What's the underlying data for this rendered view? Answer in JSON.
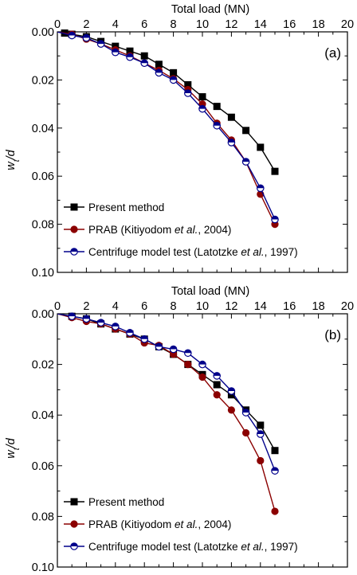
{
  "chart_data": [
    {
      "type": "line",
      "panel_label": "(a)",
      "xlabel": "Total load (MN)",
      "ylabel_main": "w",
      "ylabel_sub": "t",
      "ylabel_rest": "/d",
      "xlim": [
        0,
        20
      ],
      "ylim": [
        0.1,
        0.0
      ],
      "y_reversed": true,
      "x_ticks": [
        "0",
        "2",
        "4",
        "6",
        "8",
        "10",
        "12",
        "14",
        "16",
        "18",
        "20"
      ],
      "y_ticks": [
        "0.00",
        "0.02",
        "0.04",
        "0.06",
        "0.08",
        "0.10"
      ],
      "x_axis_position": "top",
      "grid": false,
      "legend_position": "bottom-left",
      "series": [
        {
          "name": "Present method",
          "color": "#000000",
          "marker": "square",
          "points": [
            [
              0,
              0.0
            ],
            [
              0.5,
              0.0005
            ],
            [
              1,
              0.001
            ],
            [
              2,
              0.002
            ],
            [
              3,
              0.004
            ],
            [
              4,
              0.006
            ],
            [
              5,
              0.008
            ],
            [
              6,
              0.01
            ],
            [
              7,
              0.0135
            ],
            [
              8,
              0.017
            ],
            [
              9,
              0.022
            ],
            [
              10,
              0.027
            ],
            [
              11,
              0.031
            ],
            [
              12,
              0.0355
            ],
            [
              13,
              0.041
            ],
            [
              14,
              0.048
            ],
            [
              15,
              0.058
            ]
          ]
        },
        {
          "name": "PRAB",
          "name_parts": [
            "PRAB (Kitiyodom ",
            "et al.",
            ", 2004)"
          ],
          "color": "#8b0000",
          "marker": "circle",
          "points": [
            [
              0,
              0.0
            ],
            [
              1,
              0.001
            ],
            [
              2,
              0.003
            ],
            [
              3,
              0.005
            ],
            [
              4,
              0.0075
            ],
            [
              5,
              0.01
            ],
            [
              6,
              0.013
            ],
            [
              7,
              0.016
            ],
            [
              8,
              0.0195
            ],
            [
              9,
              0.024
            ],
            [
              10,
              0.03
            ],
            [
              11,
              0.038
            ],
            [
              12,
              0.045
            ],
            [
              13,
              0.054
            ],
            [
              14,
              0.0675
            ],
            [
              15,
              0.08
            ]
          ]
        },
        {
          "name": "Centrifuge model test",
          "name_parts": [
            "Centrifuge model test (Latotzke ",
            "et al.",
            ", 1997)"
          ],
          "color": "#00008b",
          "marker": "half-circle",
          "points": [
            [
              0,
              0.0
            ],
            [
              1,
              0.0015
            ],
            [
              2,
              0.0025
            ],
            [
              3,
              0.005
            ],
            [
              4,
              0.0085
            ],
            [
              5,
              0.0105
            ],
            [
              6,
              0.013
            ],
            [
              7,
              0.017
            ],
            [
              8,
              0.02
            ],
            [
              9,
              0.0255
            ],
            [
              10,
              0.032
            ],
            [
              11,
              0.039
            ],
            [
              12,
              0.046
            ],
            [
              13,
              0.054
            ],
            [
              14,
              0.065
            ],
            [
              15,
              0.078
            ]
          ]
        }
      ]
    },
    {
      "type": "line",
      "panel_label": "(b)",
      "xlabel": "Total load (MN)",
      "ylabel_main": "w",
      "ylabel_sub": "t",
      "ylabel_rest": "/d",
      "xlim": [
        0,
        20
      ],
      "ylim": [
        0.1,
        0.0
      ],
      "y_reversed": true,
      "x_ticks": [
        "0",
        "2",
        "4",
        "6",
        "8",
        "10",
        "12",
        "14",
        "16",
        "18",
        "20"
      ],
      "y_ticks": [
        "0.00",
        "0.02",
        "0.04",
        "0.06",
        "0.08",
        "0.10"
      ],
      "x_axis_position": "top",
      "grid": false,
      "legend_position": "bottom-left",
      "series": [
        {
          "name": "Present method",
          "color": "#000000",
          "marker": "square",
          "points": [
            [
              0,
              0.0
            ],
            [
              1,
              0.001
            ],
            [
              2,
              0.002
            ],
            [
              3,
              0.004
            ],
            [
              4,
              0.006
            ],
            [
              5,
              0.008
            ],
            [
              6,
              0.01
            ],
            [
              7,
              0.013
            ],
            [
              8,
              0.016
            ],
            [
              9,
              0.02
            ],
            [
              10,
              0.024
            ],
            [
              11,
              0.028
            ],
            [
              12,
              0.032
            ],
            [
              13,
              0.038
            ],
            [
              14,
              0.044
            ],
            [
              15,
              0.054
            ]
          ]
        },
        {
          "name": "PRAB",
          "name_parts": [
            "PRAB (Kitiyodom ",
            "et al.",
            ", 2004)"
          ],
          "color": "#8b0000",
          "marker": "circle",
          "points": [
            [
              0,
              0.0
            ],
            [
              1,
              0.0015
            ],
            [
              2,
              0.003
            ],
            [
              3,
              0.004
            ],
            [
              4,
              0.006
            ],
            [
              5,
              0.008
            ],
            [
              6,
              0.0115
            ],
            [
              7,
              0.0125
            ],
            [
              8,
              0.016
            ],
            [
              9,
              0.02
            ],
            [
              10,
              0.025
            ],
            [
              11,
              0.032
            ],
            [
              12,
              0.038
            ],
            [
              13,
              0.047
            ],
            [
              14,
              0.058
            ],
            [
              15,
              0.078
            ]
          ]
        },
        {
          "name": "Centrifuge model test",
          "name_parts": [
            "Centrifuge model test (Latotzke ",
            "et al.",
            ", 1997)"
          ],
          "color": "#00008b",
          "marker": "half-circle",
          "points": [
            [
              0,
              0.0
            ],
            [
              1,
              0.001
            ],
            [
              2,
              0.002
            ],
            [
              3,
              0.0035
            ],
            [
              4,
              0.005
            ],
            [
              5,
              0.0075
            ],
            [
              6,
              0.01
            ],
            [
              7,
              0.013
            ],
            [
              8,
              0.014
            ],
            [
              9,
              0.0155
            ],
            [
              10,
              0.02
            ],
            [
              11,
              0.0245
            ],
            [
              12,
              0.0305
            ],
            [
              13,
              0.039
            ],
            [
              14,
              0.0475
            ],
            [
              15,
              0.062
            ]
          ]
        }
      ]
    }
  ]
}
